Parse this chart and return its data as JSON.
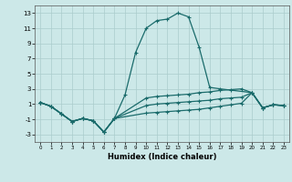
{
  "xlabel": "Humidex (Indice chaleur)",
  "xlim": [
    -0.5,
    23.5
  ],
  "ylim": [
    -4,
    14
  ],
  "xticks": [
    0,
    1,
    2,
    3,
    4,
    5,
    6,
    7,
    8,
    9,
    10,
    11,
    12,
    13,
    14,
    15,
    16,
    17,
    18,
    19,
    20,
    21,
    22,
    23
  ],
  "yticks": [
    -3,
    -1,
    1,
    3,
    5,
    7,
    9,
    11,
    13
  ],
  "background_color": "#cce8e8",
  "grid_color": "#aacccc",
  "line_color": "#1a6b6b",
  "line1_x": [
    0,
    1,
    2,
    3,
    4,
    5,
    6,
    7,
    8,
    9,
    10,
    11,
    12,
    13,
    14,
    15,
    16,
    17,
    20,
    21,
    22,
    23
  ],
  "line1_y": [
    1.2,
    0.7,
    -0.3,
    -1.3,
    -0.9,
    -1.2,
    -2.7,
    -0.9,
    2.2,
    7.8,
    11.0,
    12.0,
    12.2,
    13.0,
    12.5,
    8.5,
    3.2,
    3.0,
    2.5,
    0.5,
    0.9,
    0.8
  ],
  "line2_x": [
    0,
    1,
    2,
    3,
    4,
    5,
    6,
    7,
    10,
    11,
    12,
    13,
    14,
    15,
    16,
    17,
    18,
    19,
    20,
    21,
    22,
    23
  ],
  "line2_y": [
    1.2,
    0.7,
    -0.3,
    -1.3,
    -0.9,
    -1.2,
    -2.7,
    -0.9,
    1.8,
    2.0,
    2.1,
    2.2,
    2.3,
    2.5,
    2.6,
    2.8,
    2.9,
    3.0,
    2.5,
    0.5,
    0.9,
    0.8
  ],
  "line3_x": [
    0,
    1,
    2,
    3,
    4,
    5,
    6,
    7,
    10,
    11,
    12,
    13,
    14,
    15,
    16,
    17,
    18,
    19,
    20,
    21,
    22,
    23
  ],
  "line3_y": [
    1.2,
    0.7,
    -0.3,
    -1.3,
    -0.9,
    -1.2,
    -2.7,
    -0.9,
    0.8,
    1.0,
    1.1,
    1.2,
    1.3,
    1.4,
    1.5,
    1.7,
    1.8,
    1.9,
    2.5,
    0.5,
    0.9,
    0.8
  ],
  "line4_x": [
    0,
    1,
    2,
    3,
    4,
    5,
    6,
    7,
    10,
    11,
    12,
    13,
    14,
    15,
    16,
    17,
    18,
    19,
    20,
    21,
    22,
    23
  ],
  "line4_y": [
    1.2,
    0.7,
    -0.3,
    -1.3,
    -0.9,
    -1.2,
    -2.7,
    -0.9,
    -0.2,
    -0.1,
    0.0,
    0.1,
    0.2,
    0.3,
    0.5,
    0.7,
    0.9,
    1.1,
    2.5,
    0.5,
    0.9,
    0.8
  ]
}
